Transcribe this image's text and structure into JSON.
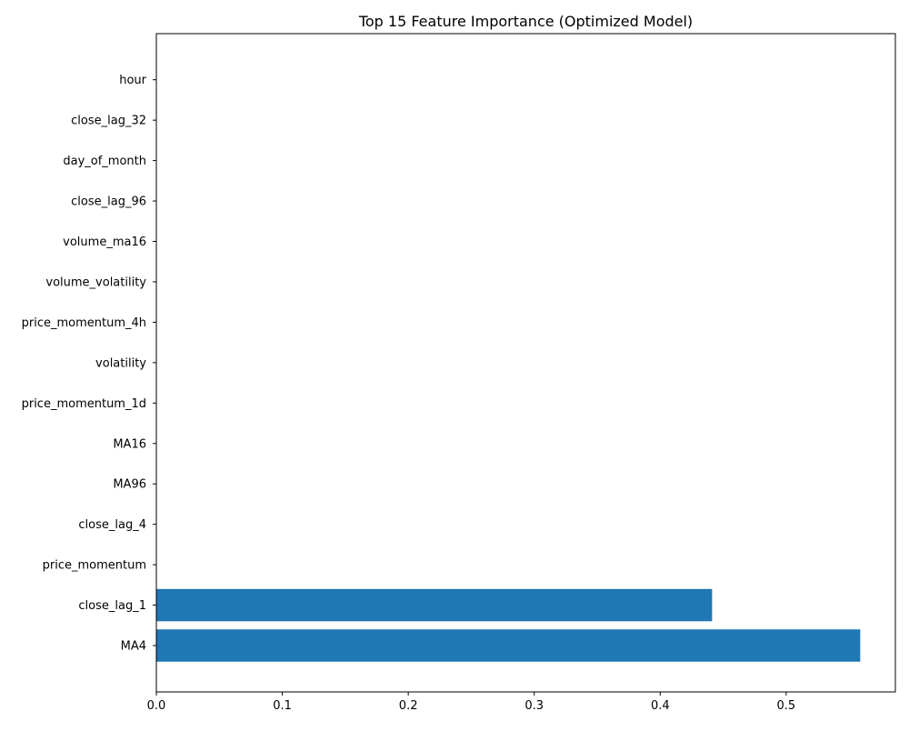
{
  "chart_data": {
    "type": "bar",
    "orientation": "horizontal",
    "title": "Top 15 Feature Importance (Optimized Model)",
    "xlabel": "",
    "ylabel": "",
    "categories": [
      "MA4",
      "close_lag_1",
      "price_momentum",
      "close_lag_4",
      "MA96",
      "MA16",
      "price_momentum_1d",
      "volatility",
      "price_momentum_4h",
      "volume_volatility",
      "volume_ma16",
      "close_lag_96",
      "day_of_month",
      "close_lag_32",
      "hour"
    ],
    "values": [
      0.5588,
      0.4412,
      0,
      0,
      0,
      0,
      0,
      0,
      0,
      0,
      0,
      0,
      0,
      0,
      0
    ],
    "xlim": [
      0,
      0.5867
    ],
    "xticks": [
      "0.0",
      "0.1",
      "0.2",
      "0.3",
      "0.4",
      "0.5"
    ],
    "grid": false,
    "bar_color": "#1f77b4"
  }
}
